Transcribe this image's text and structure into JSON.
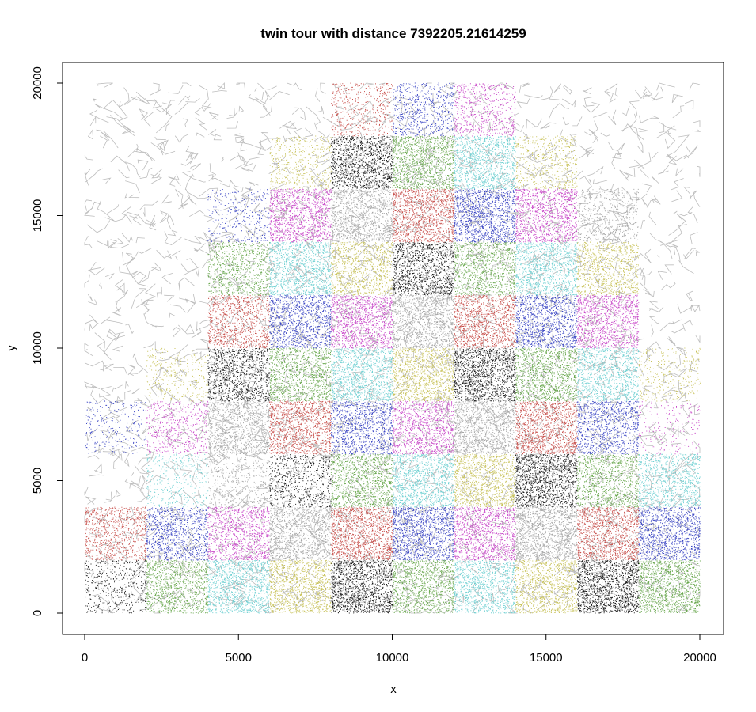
{
  "chart_data": {
    "type": "scatter",
    "title": "twin tour with distance  7392205.21614259",
    "xlabel": "x",
    "ylabel": "y",
    "xlim": [
      0,
      20000
    ],
    "ylim": [
      0,
      20000
    ],
    "x_ticks": [
      "0",
      "5000",
      "10000",
      "15000",
      "20000"
    ],
    "y_ticks": [
      "0",
      "5000",
      "10000",
      "15000",
      "20000"
    ],
    "grid": false,
    "legend": "none",
    "point_size": "tiny dots",
    "tour_line_color": "#bdbdbd",
    "block_size": 2000,
    "palette": {
      "black": "#1a1a1a",
      "red": "#c8504c",
      "green": "#6aa84f",
      "blue": "#3b46c4",
      "cyan": "#6fd0d2",
      "magenta": "#c94ac9",
      "yellow": "#c8c25a",
      "gray": "#a6a6a6"
    },
    "colored_blocks": [
      {
        "x0": 0,
        "y0": 0,
        "x1": 2000,
        "y1": 2000,
        "color": "black",
        "density": 0.35
      },
      {
        "x0": 2000,
        "y0": 0,
        "x1": 4000,
        "y1": 2000,
        "color": "green",
        "density": 0.8
      },
      {
        "x0": 4000,
        "y0": 0,
        "x1": 6000,
        "y1": 2000,
        "color": "cyan",
        "density": 0.9
      },
      {
        "x0": 6000,
        "y0": 0,
        "x1": 8000,
        "y1": 2000,
        "color": "yellow",
        "density": 0.9
      },
      {
        "x0": 8000,
        "y0": 0,
        "x1": 10000,
        "y1": 2000,
        "color": "black",
        "density": 0.95
      },
      {
        "x0": 10000,
        "y0": 0,
        "x1": 12000,
        "y1": 2000,
        "color": "green",
        "density": 0.85
      },
      {
        "x0": 12000,
        "y0": 0,
        "x1": 14000,
        "y1": 2000,
        "color": "cyan",
        "density": 0.8
      },
      {
        "x0": 14000,
        "y0": 0,
        "x1": 16000,
        "y1": 2000,
        "color": "yellow",
        "density": 0.8
      },
      {
        "x0": 16000,
        "y0": 0,
        "x1": 18000,
        "y1": 2000,
        "color": "black",
        "density": 1.0
      },
      {
        "x0": 18000,
        "y0": 0,
        "x1": 20000,
        "y1": 2000,
        "color": "green",
        "density": 0.95
      },
      {
        "x0": 0,
        "y0": 2000,
        "x1": 2000,
        "y1": 4000,
        "color": "red",
        "density": 0.6
      },
      {
        "x0": 2000,
        "y0": 2000,
        "x1": 4000,
        "y1": 4000,
        "color": "blue",
        "density": 0.7
      },
      {
        "x0": 4000,
        "y0": 2000,
        "x1": 6000,
        "y1": 4000,
        "color": "magenta",
        "density": 0.75
      },
      {
        "x0": 6000,
        "y0": 2000,
        "x1": 8000,
        "y1": 4000,
        "color": "gray",
        "density": 0.85
      },
      {
        "x0": 8000,
        "y0": 2000,
        "x1": 10000,
        "y1": 4000,
        "color": "red",
        "density": 0.95
      },
      {
        "x0": 10000,
        "y0": 2000,
        "x1": 12000,
        "y1": 4000,
        "color": "blue",
        "density": 0.95
      },
      {
        "x0": 12000,
        "y0": 2000,
        "x1": 14000,
        "y1": 4000,
        "color": "magenta",
        "density": 0.9
      },
      {
        "x0": 14000,
        "y0": 2000,
        "x1": 16000,
        "y1": 4000,
        "color": "gray",
        "density": 0.9
      },
      {
        "x0": 16000,
        "y0": 2000,
        "x1": 18000,
        "y1": 4000,
        "color": "red",
        "density": 0.85
      },
      {
        "x0": 18000,
        "y0": 2000,
        "x1": 20000,
        "y1": 4000,
        "color": "blue",
        "density": 0.85
      },
      {
        "x0": 2000,
        "y0": 4000,
        "x1": 4000,
        "y1": 6000,
        "color": "cyan",
        "density": 0.3
      },
      {
        "x0": 4000,
        "y0": 4000,
        "x1": 6000,
        "y1": 6000,
        "color": "gray",
        "density": 0.3
      },
      {
        "x0": 6000,
        "y0": 4000,
        "x1": 8000,
        "y1": 6000,
        "color": "black",
        "density": 0.45
      },
      {
        "x0": 8000,
        "y0": 4000,
        "x1": 10000,
        "y1": 6000,
        "color": "green",
        "density": 0.85
      },
      {
        "x0": 10000,
        "y0": 4000,
        "x1": 12000,
        "y1": 6000,
        "color": "cyan",
        "density": 0.85
      },
      {
        "x0": 12000,
        "y0": 4000,
        "x1": 14000,
        "y1": 6000,
        "color": "yellow",
        "density": 0.85
      },
      {
        "x0": 14000,
        "y0": 4000,
        "x1": 16000,
        "y1": 6000,
        "color": "black",
        "density": 0.95
      },
      {
        "x0": 16000,
        "y0": 4000,
        "x1": 18000,
        "y1": 6000,
        "color": "green",
        "density": 0.75
      },
      {
        "x0": 18000,
        "y0": 4000,
        "x1": 20000,
        "y1": 6000,
        "color": "cyan",
        "density": 0.75
      },
      {
        "x0": 0,
        "y0": 6000,
        "x1": 2000,
        "y1": 8000,
        "color": "blue",
        "density": 0.2
      },
      {
        "x0": 2000,
        "y0": 6000,
        "x1": 4000,
        "y1": 8000,
        "color": "magenta",
        "density": 0.4
      },
      {
        "x0": 4000,
        "y0": 6000,
        "x1": 6000,
        "y1": 8000,
        "color": "gray",
        "density": 0.75
      },
      {
        "x0": 6000,
        "y0": 6000,
        "x1": 8000,
        "y1": 8000,
        "color": "red",
        "density": 0.85
      },
      {
        "x0": 8000,
        "y0": 6000,
        "x1": 10000,
        "y1": 8000,
        "color": "blue",
        "density": 0.75
      },
      {
        "x0": 10000,
        "y0": 6000,
        "x1": 12000,
        "y1": 8000,
        "color": "magenta",
        "density": 0.8
      },
      {
        "x0": 12000,
        "y0": 6000,
        "x1": 14000,
        "y1": 8000,
        "color": "gray",
        "density": 0.85
      },
      {
        "x0": 14000,
        "y0": 6000,
        "x1": 16000,
        "y1": 8000,
        "color": "red",
        "density": 0.9
      },
      {
        "x0": 16000,
        "y0": 6000,
        "x1": 18000,
        "y1": 8000,
        "color": "blue",
        "density": 0.7
      },
      {
        "x0": 18000,
        "y0": 6000,
        "x1": 20000,
        "y1": 8000,
        "color": "magenta",
        "density": 0.15
      },
      {
        "x0": 2000,
        "y0": 8000,
        "x1": 4000,
        "y1": 10000,
        "color": "yellow",
        "density": 0.25
      },
      {
        "x0": 4000,
        "y0": 8000,
        "x1": 6000,
        "y1": 10000,
        "color": "black",
        "density": 0.75
      },
      {
        "x0": 6000,
        "y0": 8000,
        "x1": 8000,
        "y1": 10000,
        "color": "green",
        "density": 0.85
      },
      {
        "x0": 8000,
        "y0": 8000,
        "x1": 10000,
        "y1": 10000,
        "color": "cyan",
        "density": 0.85
      },
      {
        "x0": 10000,
        "y0": 8000,
        "x1": 12000,
        "y1": 10000,
        "color": "yellow",
        "density": 0.85
      },
      {
        "x0": 12000,
        "y0": 8000,
        "x1": 14000,
        "y1": 10000,
        "color": "black",
        "density": 0.95
      },
      {
        "x0": 14000,
        "y0": 8000,
        "x1": 16000,
        "y1": 10000,
        "color": "green",
        "density": 0.85
      },
      {
        "x0": 16000,
        "y0": 8000,
        "x1": 18000,
        "y1": 10000,
        "color": "cyan",
        "density": 0.8
      },
      {
        "x0": 18000,
        "y0": 8000,
        "x1": 20000,
        "y1": 10000,
        "color": "yellow",
        "density": 0.25
      },
      {
        "x0": 4000,
        "y0": 10000,
        "x1": 6000,
        "y1": 12000,
        "color": "red",
        "density": 0.65
      },
      {
        "x0": 6000,
        "y0": 10000,
        "x1": 8000,
        "y1": 12000,
        "color": "blue",
        "density": 0.8
      },
      {
        "x0": 8000,
        "y0": 10000,
        "x1": 10000,
        "y1": 12000,
        "color": "magenta",
        "density": 0.9
      },
      {
        "x0": 10000,
        "y0": 10000,
        "x1": 12000,
        "y1": 12000,
        "color": "gray",
        "density": 0.85
      },
      {
        "x0": 12000,
        "y0": 10000,
        "x1": 14000,
        "y1": 12000,
        "color": "red",
        "density": 0.85
      },
      {
        "x0": 14000,
        "y0": 10000,
        "x1": 16000,
        "y1": 12000,
        "color": "blue",
        "density": 0.85
      },
      {
        "x0": 16000,
        "y0": 10000,
        "x1": 18000,
        "y1": 12000,
        "color": "magenta",
        "density": 0.85
      },
      {
        "x0": 4000,
        "y0": 12000,
        "x1": 6000,
        "y1": 14000,
        "color": "green",
        "density": 0.6
      },
      {
        "x0": 6000,
        "y0": 12000,
        "x1": 8000,
        "y1": 14000,
        "color": "cyan",
        "density": 0.85
      },
      {
        "x0": 8000,
        "y0": 12000,
        "x1": 10000,
        "y1": 14000,
        "color": "yellow",
        "density": 0.7
      },
      {
        "x0": 10000,
        "y0": 12000,
        "x1": 12000,
        "y1": 14000,
        "color": "black",
        "density": 0.8
      },
      {
        "x0": 12000,
        "y0": 12000,
        "x1": 14000,
        "y1": 14000,
        "color": "green",
        "density": 0.75
      },
      {
        "x0": 14000,
        "y0": 12000,
        "x1": 16000,
        "y1": 14000,
        "color": "cyan",
        "density": 0.8
      },
      {
        "x0": 16000,
        "y0": 12000,
        "x1": 18000,
        "y1": 14000,
        "color": "yellow",
        "density": 0.65
      },
      {
        "x0": 4000,
        "y0": 14000,
        "x1": 6000,
        "y1": 16000,
        "color": "blue",
        "density": 0.25
      },
      {
        "x0": 6000,
        "y0": 14000,
        "x1": 8000,
        "y1": 16000,
        "color": "magenta",
        "density": 0.9
      },
      {
        "x0": 8000,
        "y0": 14000,
        "x1": 10000,
        "y1": 16000,
        "color": "gray",
        "density": 0.8
      },
      {
        "x0": 10000,
        "y0": 14000,
        "x1": 12000,
        "y1": 16000,
        "color": "red",
        "density": 0.9
      },
      {
        "x0": 12000,
        "y0": 14000,
        "x1": 14000,
        "y1": 16000,
        "color": "blue",
        "density": 0.95
      },
      {
        "x0": 14000,
        "y0": 14000,
        "x1": 16000,
        "y1": 16000,
        "color": "magenta",
        "density": 0.85
      },
      {
        "x0": 16000,
        "y0": 14000,
        "x1": 18000,
        "y1": 16000,
        "color": "gray",
        "density": 0.4
      },
      {
        "x0": 6000,
        "y0": 16000,
        "x1": 8000,
        "y1": 18000,
        "color": "yellow",
        "density": 0.35
      },
      {
        "x0": 8000,
        "y0": 16000,
        "x1": 10000,
        "y1": 18000,
        "color": "black",
        "density": 0.85
      },
      {
        "x0": 10000,
        "y0": 16000,
        "x1": 12000,
        "y1": 18000,
        "color": "green",
        "density": 0.9
      },
      {
        "x0": 12000,
        "y0": 16000,
        "x1": 14000,
        "y1": 18000,
        "color": "cyan",
        "density": 0.85
      },
      {
        "x0": 14000,
        "y0": 16000,
        "x1": 16000,
        "y1": 18000,
        "color": "yellow",
        "density": 0.4
      },
      {
        "x0": 8000,
        "y0": 18000,
        "x1": 10000,
        "y1": 20000,
        "color": "red",
        "density": 0.35
      },
      {
        "x0": 10000,
        "y0": 18000,
        "x1": 12000,
        "y1": 20000,
        "color": "blue",
        "density": 0.45
      },
      {
        "x0": 12000,
        "y0": 18000,
        "x1": 14000,
        "y1": 20000,
        "color": "magenta",
        "density": 0.45
      }
    ]
  }
}
